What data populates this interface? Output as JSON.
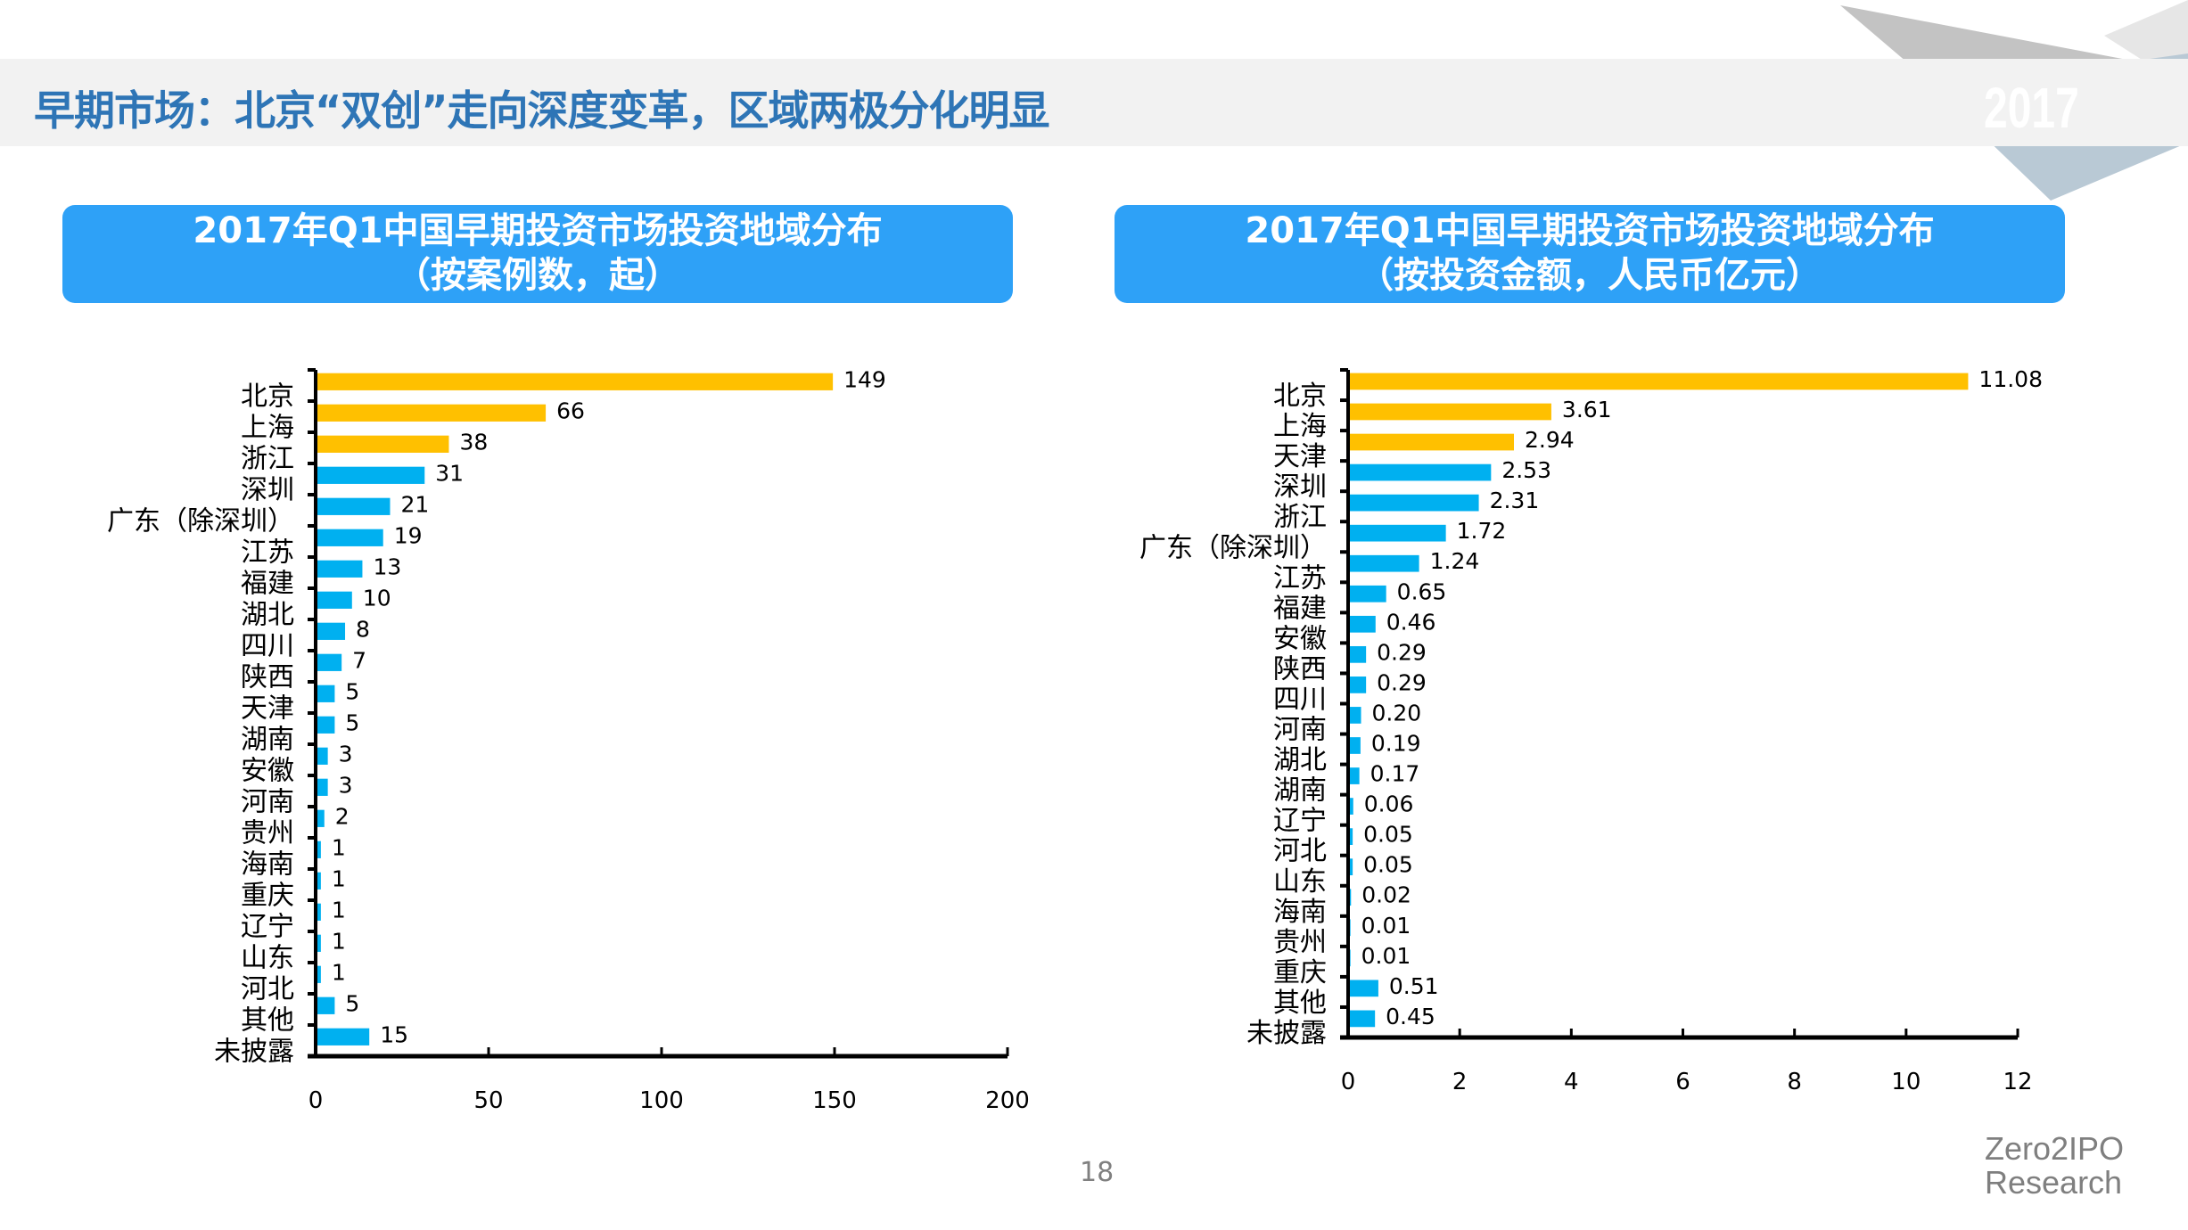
{
  "header": {
    "title": "早期市场：北京“双创”走向深度变革，区域两极分化明显",
    "year_badge": "2017"
  },
  "colors": {
    "title": "#2e75b6",
    "banner": "#2ea1f7",
    "highlight_bar": "#ffc000",
    "bar": "#00b0f0"
  },
  "footer": {
    "page_number": "18",
    "brand_line1": "Zero2IPO",
    "brand_line2": "Research"
  },
  "chart_data": [
    {
      "type": "bar",
      "orientation": "horizontal",
      "title_line1": "2017年Q1中国早期投资市场投资地域分布",
      "title_line2": "（按案例数，起）",
      "categories": [
        "北京",
        "上海",
        "浙江",
        "深圳",
        "广东（除深圳）",
        "江苏",
        "福建",
        "湖北",
        "四川",
        "陕西",
        "天津",
        "湖南",
        "安徽",
        "河南",
        "贵州",
        "海南",
        "重庆",
        "辽宁",
        "山东",
        "河北",
        "其他",
        "未披露"
      ],
      "values": [
        149,
        66,
        38,
        31,
        21,
        19,
        13,
        10,
        8,
        7,
        5,
        5,
        3,
        3,
        2,
        1,
        1,
        1,
        1,
        1,
        5,
        15
      ],
      "value_labels": [
        "149",
        "66",
        "38",
        "31",
        "21",
        "19",
        "13",
        "10",
        "8",
        "7",
        "5",
        "5",
        "3",
        "3",
        "2",
        "1",
        "1",
        "1",
        "1",
        "1",
        "5",
        "15"
      ],
      "highlight_count": 3,
      "xlim": [
        0,
        200
      ],
      "xticks": [
        "0",
        "50",
        "100",
        "150",
        "200"
      ],
      "xtick_values": [
        0,
        50,
        100,
        150,
        200
      ],
      "grid": false,
      "legend": "none"
    },
    {
      "type": "bar",
      "orientation": "horizontal",
      "title_line1": "2017年Q1中国早期投资市场投资地域分布",
      "title_line2": "（按投资金额，人民币亿元）",
      "categories": [
        "北京",
        "上海",
        "天津",
        "深圳",
        "浙江",
        "广东（除深圳）",
        "江苏",
        "福建",
        "安徽",
        "陕西",
        "四川",
        "河南",
        "湖北",
        "湖南",
        "辽宁",
        "河北",
        "山东",
        "海南",
        "贵州",
        "重庆",
        "其他",
        "未披露"
      ],
      "values": [
        11.08,
        3.61,
        2.94,
        2.53,
        2.31,
        1.72,
        1.24,
        0.65,
        0.46,
        0.29,
        0.29,
        0.2,
        0.19,
        0.17,
        0.06,
        0.05,
        0.05,
        0.02,
        0.01,
        0.01,
        0.51,
        0.45
      ],
      "value_labels": [
        "11.08",
        "3.61",
        "2.94",
        "2.53",
        "2.31",
        "1.72",
        "1.24",
        "0.65",
        "0.46",
        "0.29",
        "0.29",
        "0.20",
        "0.19",
        "0.17",
        "0.06",
        "0.05",
        "0.05",
        "0.02",
        "0.01",
        "0.01",
        "0.51",
        "0.45"
      ],
      "highlight_count": 3,
      "xlim": [
        0,
        12
      ],
      "xticks": [
        "0",
        "2",
        "4",
        "6",
        "8",
        "10",
        "12"
      ],
      "xtick_values": [
        0,
        2,
        4,
        6,
        8,
        10,
        12
      ],
      "grid": false,
      "legend": "none"
    }
  ]
}
